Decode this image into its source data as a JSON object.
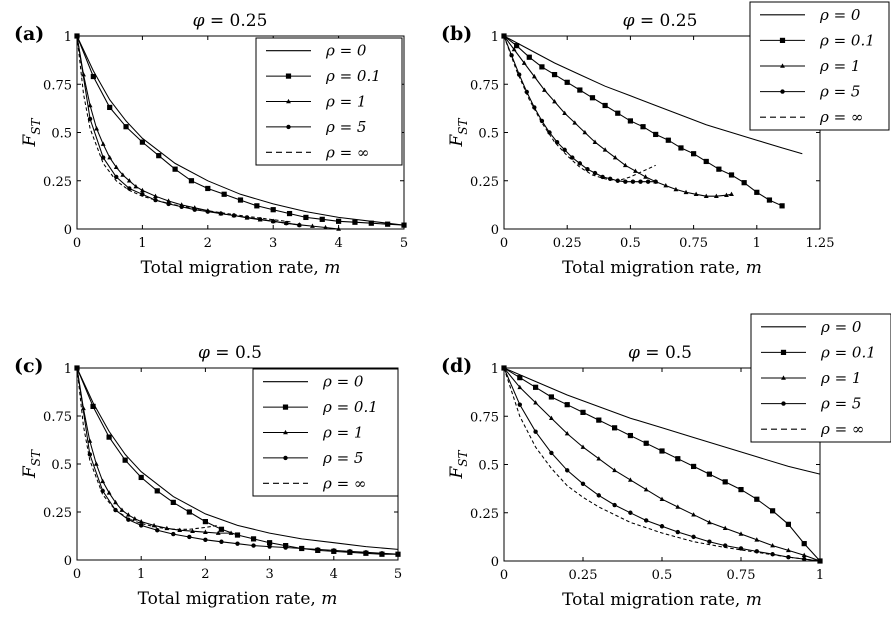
{
  "chart_data": [
    {
      "type": "line",
      "panel_label": "(a)",
      "title_symbol": "φ",
      "title_value": "= 0.25",
      "xlabel": "Total migration rate,",
      "xlabel_var": "m",
      "ylabel": "F",
      "ylabel_sub": "ST",
      "xlim": [
        0,
        5
      ],
      "ylim": [
        0,
        1
      ],
      "xticks": [
        0,
        1,
        2,
        3,
        4,
        5
      ],
      "xtick_labels": [
        "0",
        "1",
        "2",
        "3",
        "4",
        "5"
      ],
      "yticks": [
        0,
        0.25,
        0.5,
        0.75,
        1
      ],
      "ytick_labels": [
        "0",
        "0.25",
        "0.5",
        "0.75",
        "1"
      ],
      "legend_position": "top-right-inside",
      "series": [
        {
          "name": "ρ = 0",
          "marker": "none",
          "dash": false,
          "x": [
            0,
            0.25,
            0.5,
            0.75,
            1,
            1.5,
            2,
            2.5,
            3,
            3.5,
            4,
            4.5,
            5
          ],
          "y": [
            1,
            0.82,
            0.67,
            0.56,
            0.47,
            0.34,
            0.25,
            0.18,
            0.13,
            0.09,
            0.06,
            0.04,
            0.02
          ]
        },
        {
          "name": "ρ = 0.1",
          "marker": "square",
          "dash": false,
          "x": [
            0,
            0.25,
            0.5,
            0.75,
            1,
            1.25,
            1.5,
            1.75,
            2,
            2.25,
            2.5,
            2.75,
            3,
            3.25,
            3.5,
            3.75,
            4,
            4.25,
            4.5,
            4.75,
            5
          ],
          "y": [
            1,
            0.79,
            0.63,
            0.53,
            0.45,
            0.38,
            0.31,
            0.25,
            0.21,
            0.18,
            0.15,
            0.12,
            0.1,
            0.08,
            0.06,
            0.05,
            0.04,
            0.035,
            0.03,
            0.025,
            0.02
          ]
        },
        {
          "name": "ρ = 1",
          "marker": "triangle",
          "dash": false,
          "x": [
            0,
            0.1,
            0.2,
            0.3,
            0.4,
            0.5,
            0.6,
            0.7,
            0.8,
            0.9,
            1,
            1.2,
            1.4,
            1.6,
            1.8,
            2,
            2.2,
            2.4,
            2.6,
            2.8,
            3,
            3.2,
            3.4,
            3.6,
            3.8,
            4
          ],
          "y": [
            1,
            0.8,
            0.64,
            0.52,
            0.44,
            0.37,
            0.32,
            0.28,
            0.25,
            0.22,
            0.2,
            0.17,
            0.145,
            0.125,
            0.11,
            0.095,
            0.08,
            0.07,
            0.058,
            0.048,
            0.04,
            0.03,
            0.022,
            0.015,
            0.008,
            0
          ]
        },
        {
          "name": "ρ = 5",
          "marker": "circle",
          "dash": false,
          "x": [
            0,
            0.2,
            0.4,
            0.6,
            0.8,
            1,
            1.2,
            1.4,
            1.6,
            1.8,
            2,
            2.2,
            2.4,
            2.6,
            2.8,
            3,
            3.2,
            3.4
          ],
          "y": [
            1,
            0.57,
            0.37,
            0.27,
            0.21,
            0.18,
            0.15,
            0.13,
            0.115,
            0.1,
            0.09,
            0.08,
            0.07,
            0.06,
            0.05,
            0.04,
            0.03,
            0.02
          ]
        },
        {
          "name": "ρ = ∞",
          "marker": "none",
          "dash": true,
          "x": [
            0,
            0.1,
            0.2,
            0.4,
            0.6,
            0.8,
            1,
            1.25,
            1.5,
            2,
            2.5,
            3,
            3.3
          ],
          "y": [
            1,
            0.7,
            0.52,
            0.34,
            0.25,
            0.2,
            0.17,
            0.145,
            0.125,
            0.095,
            0.07,
            0.048,
            0.035
          ]
        }
      ]
    },
    {
      "type": "line",
      "panel_label": "(b)",
      "title_symbol": "φ",
      "title_value": "= 0.25",
      "xlabel": "Total migration rate,",
      "xlabel_var": "m",
      "ylabel": "F",
      "ylabel_sub": "ST",
      "xlim": [
        0,
        1.25
      ],
      "ylim": [
        0,
        1
      ],
      "xticks": [
        0,
        0.25,
        0.5,
        0.75,
        1,
        1.25
      ],
      "xtick_labels": [
        "0",
        "0.25",
        "0.5",
        "0.75",
        "1",
        "1.25"
      ],
      "yticks": [
        0,
        0.25,
        0.5,
        0.75,
        1
      ],
      "ytick_labels": [
        "0",
        "0.25",
        "0.5",
        "0.75",
        "1"
      ],
      "legend_position": "top-right-outside",
      "series": [
        {
          "name": "ρ = 0",
          "marker": "none",
          "dash": false,
          "x": [
            0,
            0.1,
            0.2,
            0.3,
            0.4,
            0.5,
            0.6,
            0.7,
            0.8,
            0.9,
            1,
            1.1,
            1.18
          ],
          "y": [
            1,
            0.93,
            0.86,
            0.8,
            0.74,
            0.69,
            0.64,
            0.59,
            0.54,
            0.5,
            0.46,
            0.42,
            0.39
          ]
        },
        {
          "name": "ρ = 0.1",
          "marker": "square",
          "dash": false,
          "x": [
            0,
            0.05,
            0.1,
            0.15,
            0.2,
            0.25,
            0.3,
            0.35,
            0.4,
            0.45,
            0.5,
            0.55,
            0.6,
            0.65,
            0.7,
            0.75,
            0.8,
            0.85,
            0.9,
            0.95,
            1,
            1.05,
            1.1
          ],
          "y": [
            1,
            0.95,
            0.89,
            0.84,
            0.8,
            0.76,
            0.72,
            0.68,
            0.64,
            0.6,
            0.56,
            0.53,
            0.49,
            0.46,
            0.42,
            0.39,
            0.35,
            0.31,
            0.28,
            0.24,
            0.19,
            0.15,
            0.12
          ]
        },
        {
          "name": "ρ = 1",
          "marker": "triangle",
          "dash": false,
          "x": [
            0,
            0.04,
            0.08,
            0.12,
            0.16,
            0.2,
            0.24,
            0.28,
            0.32,
            0.36,
            0.4,
            0.44,
            0.48,
            0.52,
            0.56,
            0.6,
            0.64,
            0.68,
            0.72,
            0.76,
            0.8,
            0.84,
            0.88,
            0.9
          ],
          "y": [
            1,
            0.93,
            0.86,
            0.79,
            0.72,
            0.66,
            0.6,
            0.55,
            0.5,
            0.45,
            0.41,
            0.37,
            0.33,
            0.3,
            0.27,
            0.245,
            0.225,
            0.205,
            0.19,
            0.18,
            0.17,
            0.17,
            0.175,
            0.18
          ]
        },
        {
          "name": "ρ = 5",
          "marker": "circle",
          "dash": false,
          "x": [
            0,
            0.03,
            0.06,
            0.09,
            0.12,
            0.15,
            0.18,
            0.21,
            0.24,
            0.27,
            0.3,
            0.33,
            0.36,
            0.39,
            0.42,
            0.45,
            0.48,
            0.51,
            0.54,
            0.57,
            0.6
          ],
          "y": [
            1,
            0.9,
            0.8,
            0.71,
            0.63,
            0.56,
            0.5,
            0.45,
            0.41,
            0.37,
            0.34,
            0.31,
            0.29,
            0.27,
            0.26,
            0.25,
            0.245,
            0.245,
            0.245,
            0.245,
            0.245
          ]
        },
        {
          "name": "ρ = ∞",
          "marker": "none",
          "dash": true,
          "x": [
            0,
            0.05,
            0.1,
            0.15,
            0.2,
            0.25,
            0.3,
            0.35,
            0.4,
            0.45,
            0.5,
            0.55,
            0.6
          ],
          "y": [
            1,
            0.82,
            0.67,
            0.55,
            0.45,
            0.38,
            0.32,
            0.28,
            0.26,
            0.25,
            0.27,
            0.3,
            0.33
          ]
        }
      ]
    },
    {
      "type": "line",
      "panel_label": "(c)",
      "title_symbol": "φ",
      "title_value": "= 0.5",
      "xlabel": "Total migration rate,",
      "xlabel_var": "m",
      "ylabel": "F",
      "ylabel_sub": "ST",
      "xlim": [
        0,
        5
      ],
      "ylim": [
        0,
        1
      ],
      "xticks": [
        0,
        1,
        2,
        3,
        4,
        5
      ],
      "xtick_labels": [
        "0",
        "1",
        "2",
        "3",
        "4",
        "5"
      ],
      "yticks": [
        0,
        0.25,
        0.5,
        0.75,
        1
      ],
      "ytick_labels": [
        "0",
        "0.25",
        "0.5",
        "0.75",
        "1"
      ],
      "legend_position": "top-right-inside",
      "series": [
        {
          "name": "ρ = 0",
          "marker": "none",
          "dash": false,
          "x": [
            0,
            0.25,
            0.5,
            0.75,
            1,
            1.5,
            2,
            2.5,
            3,
            3.5,
            4,
            4.5,
            5
          ],
          "y": [
            1,
            0.82,
            0.67,
            0.55,
            0.46,
            0.33,
            0.24,
            0.18,
            0.14,
            0.11,
            0.09,
            0.07,
            0.055
          ]
        },
        {
          "name": "ρ = 0.1",
          "marker": "square",
          "dash": false,
          "x": [
            0,
            0.25,
            0.5,
            0.75,
            1,
            1.25,
            1.5,
            1.75,
            2,
            2.25,
            2.5,
            2.75,
            3,
            3.25,
            3.5,
            3.75,
            4,
            4.25,
            4.5,
            4.75,
            5
          ],
          "y": [
            1,
            0.8,
            0.64,
            0.52,
            0.43,
            0.36,
            0.3,
            0.25,
            0.2,
            0.16,
            0.13,
            0.11,
            0.09,
            0.075,
            0.06,
            0.05,
            0.045,
            0.04,
            0.035,
            0.03,
            0.03
          ]
        },
        {
          "name": "ρ = 1",
          "marker": "triangle",
          "dash": false,
          "x": [
            0,
            0.1,
            0.2,
            0.3,
            0.4,
            0.5,
            0.6,
            0.7,
            0.8,
            0.9,
            1,
            1.2,
            1.4,
            1.6,
            1.8,
            2,
            2.2,
            2.4
          ],
          "y": [
            1,
            0.79,
            0.62,
            0.5,
            0.41,
            0.35,
            0.3,
            0.26,
            0.235,
            0.215,
            0.2,
            0.18,
            0.165,
            0.155,
            0.15,
            0.145,
            0.14,
            0.14
          ]
        },
        {
          "name": "ρ = 5",
          "marker": "circle",
          "dash": false,
          "x": [
            0,
            0.2,
            0.4,
            0.6,
            0.8,
            1,
            1.25,
            1.5,
            1.75,
            2,
            2.25,
            2.5,
            2.75,
            3,
            3.25,
            3.5,
            3.75,
            4,
            4.25,
            4.5,
            4.75,
            5
          ],
          "y": [
            1,
            0.55,
            0.36,
            0.26,
            0.21,
            0.18,
            0.155,
            0.135,
            0.12,
            0.105,
            0.095,
            0.085,
            0.075,
            0.07,
            0.065,
            0.06,
            0.055,
            0.05,
            0.045,
            0.04,
            0.035,
            0.03
          ]
        },
        {
          "name": "ρ = ∞",
          "marker": "none",
          "dash": true,
          "x": [
            0,
            0.1,
            0.2,
            0.4,
            0.6,
            0.8,
            1,
            1.25,
            1.5,
            1.75,
            2,
            2.2
          ],
          "y": [
            1,
            0.7,
            0.52,
            0.34,
            0.26,
            0.215,
            0.19,
            0.17,
            0.16,
            0.16,
            0.17,
            0.18
          ]
        }
      ]
    },
    {
      "type": "line",
      "panel_label": "(d)",
      "title_symbol": "φ",
      "title_value": "= 0.5",
      "xlabel": "Total migration rate,",
      "xlabel_var": "m",
      "ylabel": "F",
      "ylabel_sub": "ST",
      "xlim": [
        0,
        1
      ],
      "ylim": [
        0,
        1
      ],
      "xticks": [
        0,
        0.25,
        0.5,
        0.75,
        1
      ],
      "xtick_labels": [
        "0",
        "0.25",
        "0.5",
        "0.75",
        "1"
      ],
      "yticks": [
        0,
        0.25,
        0.5,
        0.75,
        1
      ],
      "ytick_labels": [
        "0",
        "0.25",
        "0.5",
        "0.75",
        "1"
      ],
      "legend_position": "top-right-outside",
      "series": [
        {
          "name": "ρ = 0",
          "marker": "none",
          "dash": false,
          "x": [
            0,
            0.1,
            0.2,
            0.3,
            0.4,
            0.5,
            0.6,
            0.7,
            0.8,
            0.9,
            1
          ],
          "y": [
            1,
            0.93,
            0.86,
            0.8,
            0.74,
            0.69,
            0.64,
            0.59,
            0.54,
            0.49,
            0.45
          ]
        },
        {
          "name": "ρ = 0.1",
          "marker": "square",
          "dash": false,
          "x": [
            0,
            0.05,
            0.1,
            0.15,
            0.2,
            0.25,
            0.3,
            0.35,
            0.4,
            0.45,
            0.5,
            0.55,
            0.6,
            0.65,
            0.7,
            0.75,
            0.8,
            0.85,
            0.9,
            0.95,
            1
          ],
          "y": [
            1,
            0.95,
            0.9,
            0.85,
            0.81,
            0.77,
            0.73,
            0.69,
            0.65,
            0.61,
            0.57,
            0.53,
            0.49,
            0.45,
            0.41,
            0.37,
            0.32,
            0.26,
            0.19,
            0.09,
            0
          ]
        },
        {
          "name": "ρ = 1",
          "marker": "triangle",
          "dash": false,
          "x": [
            0,
            0.05,
            0.1,
            0.15,
            0.2,
            0.25,
            0.3,
            0.35,
            0.4,
            0.45,
            0.5,
            0.55,
            0.6,
            0.65,
            0.7,
            0.75,
            0.8,
            0.85,
            0.9,
            0.95,
            1
          ],
          "y": [
            1,
            0.9,
            0.82,
            0.74,
            0.66,
            0.59,
            0.53,
            0.47,
            0.42,
            0.37,
            0.32,
            0.28,
            0.24,
            0.2,
            0.17,
            0.14,
            0.11,
            0.08,
            0.055,
            0.03,
            0
          ]
        },
        {
          "name": "ρ = 5",
          "marker": "circle",
          "dash": false,
          "x": [
            0,
            0.05,
            0.1,
            0.15,
            0.2,
            0.25,
            0.3,
            0.35,
            0.4,
            0.45,
            0.5,
            0.55,
            0.6,
            0.65,
            0.7,
            0.75,
            0.8,
            0.85,
            0.9,
            0.95,
            1
          ],
          "y": [
            1,
            0.81,
            0.67,
            0.56,
            0.47,
            0.4,
            0.34,
            0.29,
            0.25,
            0.21,
            0.18,
            0.15,
            0.125,
            0.1,
            0.08,
            0.065,
            0.05,
            0.035,
            0.02,
            0.01,
            0
          ]
        },
        {
          "name": "ρ = ∞",
          "marker": "none",
          "dash": true,
          "x": [
            0,
            0.05,
            0.1,
            0.15,
            0.2,
            0.25,
            0.3,
            0.4,
            0.5,
            0.6,
            0.7,
            0.8,
            0.9,
            1
          ],
          "y": [
            1,
            0.75,
            0.59,
            0.48,
            0.39,
            0.33,
            0.28,
            0.2,
            0.145,
            0.1,
            0.07,
            0.045,
            0.02,
            0
          ]
        }
      ]
    }
  ]
}
